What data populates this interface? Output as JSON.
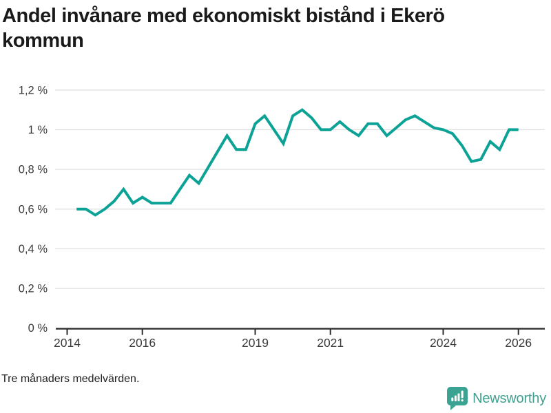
{
  "header": {
    "title_line1": "Andel invånare med ekonomiskt bistånd i Ekerö",
    "title_line2": "kommun",
    "title_full": "Andel invånare med ekonomiskt bistånd i Ekerö kommun"
  },
  "branding": {
    "name": "Newsworthy",
    "icon": "newsworthy-speech-bubble-bar-chart",
    "color": "#3e9f8e"
  },
  "colors": {
    "line": "#0ca296",
    "grid": "#e0e0e0",
    "axis": "#2d2d2d",
    "tick_label": "#3b3b3b",
    "title": "#1a1a1a",
    "background": "#ffffff"
  },
  "chart_data": {
    "type": "line",
    "title": "Andel invånare med ekonomiskt bistånd i Ekerö kommun",
    "note": "Tre månaders medelvärden.",
    "unit": "%",
    "decimal_separator": ",",
    "grid": "horizontal",
    "legend": "none",
    "line_color": "#0ca296",
    "line_width": 4,
    "xlim": [
      2013.7,
      2026.7
    ],
    "ylim": [
      0,
      1.2
    ],
    "xticks": [
      {
        "value": 2014,
        "label": "2014"
      },
      {
        "value": 2016,
        "label": "2016"
      },
      {
        "value": 2019,
        "label": "2019"
      },
      {
        "value": 2021,
        "label": "2021"
      },
      {
        "value": 2024,
        "label": "2024"
      },
      {
        "value": 2026,
        "label": "2026"
      }
    ],
    "yticks": [
      {
        "value": 0,
        "label": "0 %"
      },
      {
        "value": 0.2,
        "label": "0,2 %"
      },
      {
        "value": 0.4,
        "label": "0,4 %"
      },
      {
        "value": 0.6,
        "label": "0,6 %"
      },
      {
        "value": 0.8,
        "label": "0,8 %"
      },
      {
        "value": 1.0,
        "label": "1 %"
      },
      {
        "value": 1.2,
        "label": "1,2 %"
      }
    ],
    "x": [
      2014.25,
      2014.5,
      2014.75,
      2015.0,
      2015.25,
      2015.5,
      2015.75,
      2016.0,
      2016.25,
      2016.5,
      2016.75,
      2017.0,
      2017.25,
      2017.5,
      2017.75,
      2018.0,
      2018.25,
      2018.5,
      2018.75,
      2019.0,
      2019.25,
      2019.5,
      2019.75,
      2020.0,
      2020.25,
      2020.5,
      2020.75,
      2021.0,
      2021.25,
      2021.5,
      2021.75,
      2022.0,
      2022.25,
      2022.5,
      2022.75,
      2023.0,
      2023.25,
      2023.5,
      2023.75,
      2024.0,
      2024.25,
      2024.5,
      2024.75,
      2025.0,
      2025.25,
      2025.5,
      2025.75,
      2026.0
    ],
    "values": [
      0.6,
      0.6,
      0.57,
      0.6,
      0.64,
      0.7,
      0.63,
      0.66,
      0.63,
      0.63,
      0.63,
      0.7,
      0.77,
      0.73,
      0.81,
      0.89,
      0.97,
      0.9,
      0.9,
      1.03,
      1.07,
      1.0,
      0.93,
      1.07,
      1.1,
      1.06,
      1.0,
      1.0,
      1.04,
      1.0,
      0.97,
      1.03,
      1.03,
      0.97,
      1.01,
      1.05,
      1.07,
      1.04,
      1.01,
      1.0,
      0.98,
      0.92,
      0.84,
      0.85,
      0.94,
      0.9,
      1.0,
      1.0
    ]
  }
}
